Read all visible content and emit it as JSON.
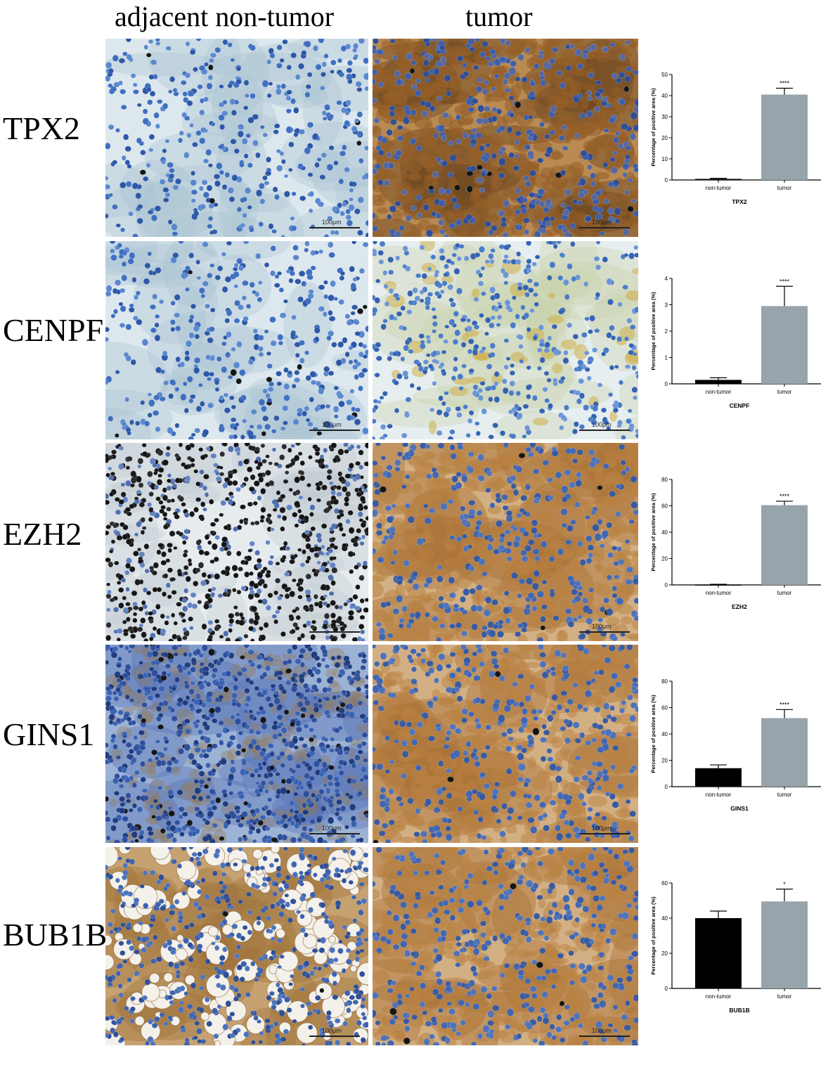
{
  "columns": {
    "left": "adjacent non-tumor",
    "right": "tumor"
  },
  "scale_label": "100μm",
  "colors": {
    "non_tumor_bar": "#000000",
    "tumor_bar": "#98a4ab"
  },
  "rows": [
    {
      "label": "TPX2",
      "normal_stain": "blue",
      "tumor_stain": "brown-strong"
    },
    {
      "label": "CENPF",
      "normal_stain": "blue",
      "tumor_stain": "blue-light"
    },
    {
      "label": "EZH2",
      "normal_stain": "dark-nuclei",
      "tumor_stain": "brown-medium"
    },
    {
      "label": "GINS1",
      "normal_stain": "blue-dense",
      "tumor_stain": "brown-medium"
    },
    {
      "label": "BUB1B",
      "normal_stain": "brown-vacuoles",
      "tumor_stain": "brown-medium"
    }
  ],
  "chart_data": [
    {
      "type": "bar",
      "title": "TPX2",
      "ylabel": "Percentage of positive area (%)",
      "categories": [
        "non-tumor",
        "tumor"
      ],
      "values": [
        0.5,
        40.5
      ],
      "errors": [
        0.3,
        3
      ],
      "ylim": [
        0,
        50
      ],
      "yticks": [
        0,
        10,
        20,
        30,
        40,
        50
      ],
      "significance": "****"
    },
    {
      "type": "bar",
      "title": "CENPF",
      "ylabel": "Percentage of positive area (%)",
      "categories": [
        "non-tumor",
        "tumor"
      ],
      "values": [
        0.15,
        2.95
      ],
      "errors": [
        0.08,
        0.75
      ],
      "ylim": [
        0,
        4
      ],
      "yticks": [
        0,
        1,
        2,
        3,
        4
      ],
      "significance": "****"
    },
    {
      "type": "bar",
      "title": "EZH2",
      "ylabel": "Percentage of positive area (%)",
      "categories": [
        "non-tumor",
        "tumor"
      ],
      "values": [
        0.3,
        60.5
      ],
      "errors": [
        0.2,
        3
      ],
      "ylim": [
        0,
        80
      ],
      "yticks": [
        0,
        20,
        40,
        60,
        80
      ],
      "significance": "****"
    },
    {
      "type": "bar",
      "title": "GINS1",
      "ylabel": "Percentage of positive area (%)",
      "categories": [
        "non-tumor",
        "tumor"
      ],
      "values": [
        14,
        52
      ],
      "errors": [
        2.5,
        6.5
      ],
      "ylim": [
        0,
        80
      ],
      "yticks": [
        0,
        20,
        40,
        60,
        80
      ],
      "significance": "****"
    },
    {
      "type": "bar",
      "title": "BUB1B",
      "ylabel": "Percentage of positive area (%)",
      "categories": [
        "non-tumor",
        "tumor"
      ],
      "values": [
        40,
        49.5
      ],
      "errors": [
        4,
        7
      ],
      "ylim": [
        0,
        60
      ],
      "yticks": [
        0,
        20,
        40,
        60
      ],
      "significance": "*"
    }
  ]
}
